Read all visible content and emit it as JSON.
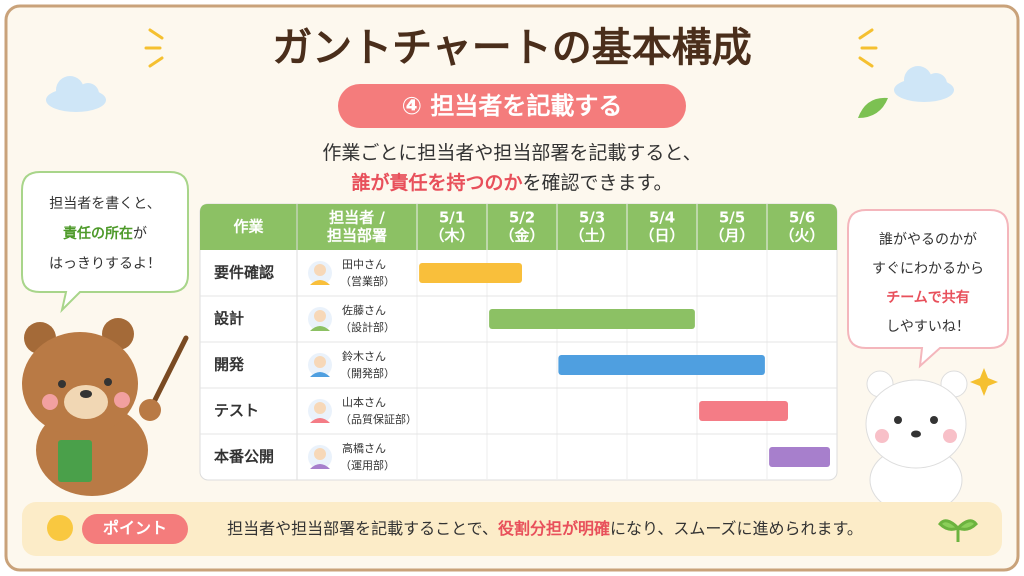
{
  "title": "ガントチャートの基本構成",
  "subtitle": "④ 担当者を記載する",
  "description": {
    "lines": [
      [
        {
          "text": "作業ごとに担当者や担当部署を記載すると、"
        }
      ],
      [
        {
          "text": "誰が責任を持つのか",
          "em": true
        },
        {
          "text": "を確認できます。"
        }
      ]
    ],
    "em_color": "#e8505b"
  },
  "table": {
    "headers": [
      [
        "作業"
      ],
      [
        "担当者 /",
        "担当部署"
      ],
      [
        "5/1",
        "（木）"
      ],
      [
        "5/2",
        "（金）"
      ],
      [
        "5/3",
        "（土）"
      ],
      [
        "5/4",
        "（日）"
      ],
      [
        "5/5",
        "（月）"
      ],
      [
        "5/6",
        "（火）"
      ]
    ],
    "rows": [
      {
        "task": "要件確認",
        "person": "田中さん",
        "dept": "（営業部）",
        "color": "#f9bf3b",
        "start": 0.03,
        "end": 1.5
      },
      {
        "task": "設計",
        "person": "佐藤さん",
        "dept": "（設計部）",
        "color": "#8cc164",
        "start": 1.03,
        "end": 3.97
      },
      {
        "task": "開発",
        "person": "鈴木さん",
        "dept": "（開発部）",
        "color": "#4f9fe0",
        "start": 2.02,
        "end": 4.97
      },
      {
        "task": "テスト",
        "person": "山本さん",
        "dept": "（品質保証部）",
        "color": "#f47c86",
        "start": 4.03,
        "end": 5.3
      },
      {
        "task": "本番公開",
        "person": "高橋さん",
        "dept": "（運用部）",
        "color": "#a77fcc",
        "start": 5.03,
        "end": 5.9
      }
    ]
  },
  "left_bubble": {
    "lines": [
      [
        {
          "text": "担当者を書くと、"
        }
      ],
      [
        {
          "text": "責任の所在",
          "em": true
        },
        {
          "text": "が"
        }
      ],
      [
        {
          "text": "はっきりするよ！"
        }
      ]
    ],
    "em_color": "#4e9a2a"
  },
  "right_bubble": {
    "lines": [
      [
        {
          "text": "誰がやるのかが"
        }
      ],
      [
        {
          "text": "すぐにわかるから"
        }
      ],
      [
        {
          "text": "チームで共有",
          "em": true
        }
      ],
      [
        {
          "text": "しやすいね！"
        }
      ]
    ],
    "em_color": "#e8505b"
  },
  "point": {
    "label": "ポイント",
    "lines": [
      [
        {
          "text": "担当者や担当部署を記載することで、"
        },
        {
          "text": "役割分担が明確",
          "em": true
        },
        {
          "text": "になり、スムーズに進められます。"
        }
      ]
    ],
    "em_color": "#e8505b"
  }
}
